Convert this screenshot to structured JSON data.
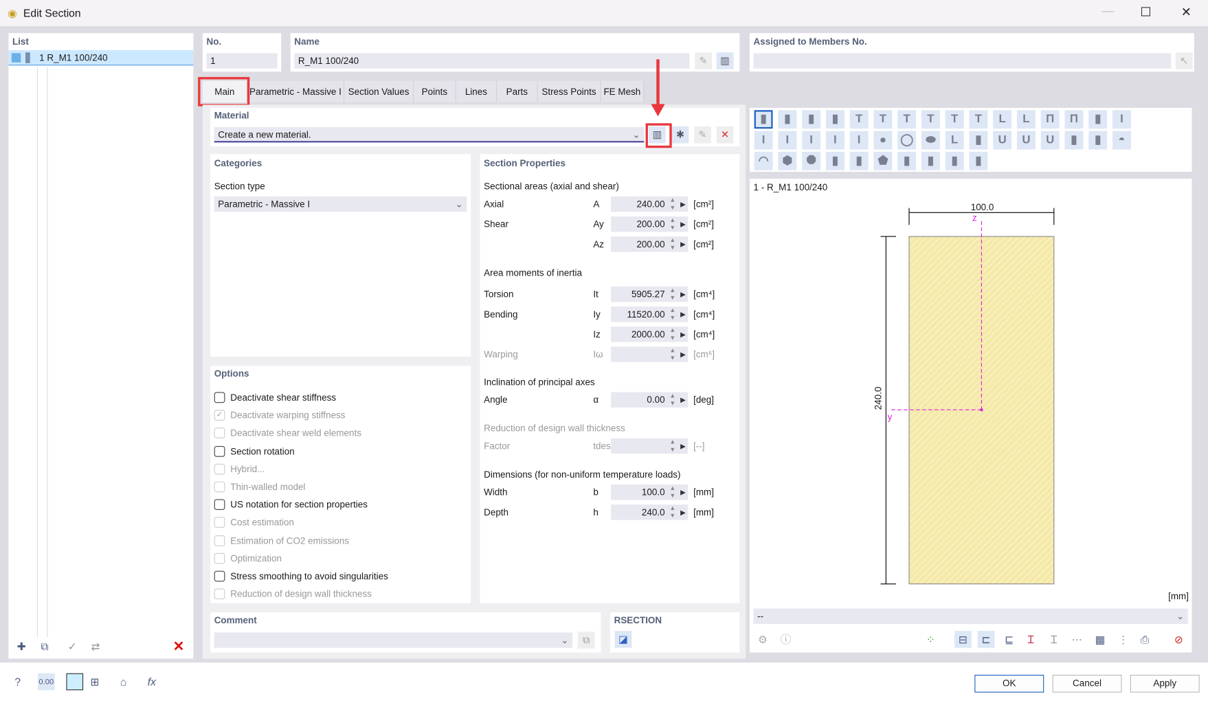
{
  "window": {
    "title": "Edit Section"
  },
  "list": {
    "header": "List",
    "items": [
      {
        "label": "1  R_M1 100/240"
      }
    ]
  },
  "no": {
    "label": "No.",
    "value": "1"
  },
  "name": {
    "label": "Name",
    "value": "R_M1 100/240"
  },
  "assigned": {
    "label": "Assigned to Members No.",
    "value": ""
  },
  "tabs": [
    "Main",
    "Parametric - Massive I",
    "Section Values",
    "Points",
    "Lines",
    "Parts",
    "Stress Points",
    "FE Mesh"
  ],
  "material": {
    "label": "Material",
    "value": "Create a new material."
  },
  "categories": {
    "label": "Categories",
    "section_type_label": "Section type",
    "section_type": "Parametric - Massive I"
  },
  "options": {
    "label": "Options",
    "items": [
      {
        "label": "Deactivate shear stiffness",
        "checked": false,
        "enabled": true
      },
      {
        "label": "Deactivate warping stiffness",
        "checked": true,
        "enabled": false
      },
      {
        "label": "Deactivate shear weld elements",
        "checked": false,
        "enabled": false
      },
      {
        "label": "Section rotation",
        "checked": false,
        "enabled": true
      },
      {
        "label": "Hybrid...",
        "checked": false,
        "enabled": false
      },
      {
        "label": "Thin-walled model",
        "checked": false,
        "enabled": false
      },
      {
        "label": "US notation for section properties",
        "checked": false,
        "enabled": true
      },
      {
        "label": "Cost estimation",
        "checked": false,
        "enabled": false
      },
      {
        "label": "Estimation of CO2 emissions",
        "checked": false,
        "enabled": false
      },
      {
        "label": "Optimization",
        "checked": false,
        "enabled": false
      },
      {
        "label": "Stress smoothing to avoid singularities",
        "checked": false,
        "enabled": true
      },
      {
        "label": "Reduction of design wall thickness",
        "checked": false,
        "enabled": false
      }
    ]
  },
  "props": {
    "label": "Section Properties",
    "areas_label": "Sectional areas (axial and shear)",
    "axial": {
      "label": "Axial",
      "sym": "A",
      "value": "240.00",
      "unit": "[cm²]"
    },
    "shear_y": {
      "label": "Shear",
      "sym": "Ay",
      "value": "200.00",
      "unit": "[cm²]"
    },
    "shear_z": {
      "label": "",
      "sym": "Az",
      "value": "200.00",
      "unit": "[cm²]"
    },
    "inertia_label": "Area moments of inertia",
    "torsion": {
      "label": "Torsion",
      "sym": "It",
      "value": "5905.27",
      "unit": "[cm⁴]"
    },
    "bending_y": {
      "label": "Bending",
      "sym": "Iy",
      "value": "11520.00",
      "unit": "[cm⁴]"
    },
    "bending_z": {
      "label": "",
      "sym": "Iz",
      "value": "2000.00",
      "unit": "[cm⁴]"
    },
    "warping": {
      "label": "Warping",
      "sym": "Iω",
      "value": "",
      "unit": "[cm⁶]"
    },
    "incl_label": "Inclination of principal axes",
    "angle": {
      "label": "Angle",
      "sym": "α",
      "value": "0.00",
      "unit": "[deg]"
    },
    "red_label": "Reduction of design wall thickness",
    "factor": {
      "label": "Factor",
      "sym": "tdes/t",
      "value": "",
      "unit": "[--]"
    },
    "dim_label": "Dimensions (for non-uniform temperature loads)",
    "width": {
      "label": "Width",
      "sym": "b",
      "value": "100.0",
      "unit": "[mm]"
    },
    "depth": {
      "label": "Depth",
      "sym": "h",
      "value": "240.0",
      "unit": "[mm]"
    }
  },
  "comment": {
    "label": "Comment",
    "value": ""
  },
  "rsection": {
    "label": "RSECTION"
  },
  "preview": {
    "title": "1 - R_M1 100/240",
    "dim_width": "100.0",
    "dim_height": "240.0",
    "axis_z": "z",
    "axis_y": "y",
    "units": "[mm]",
    "dropdown": "--",
    "fill": "#f5e9a8"
  },
  "shapes": [
    "rect",
    "rounded-rect",
    "square",
    "rounded-square",
    "trapezoid",
    "t-section",
    "t-section-2",
    "t-narrow",
    "t-inverted",
    "t-inverted-2",
    "l-flange",
    "l-flange-2",
    "pi",
    "pi-2",
    "w",
    "i-section",
    "i-section-2",
    "i-wide",
    "i-narrow",
    "i-taper",
    "i-taper-2",
    "circle",
    "ring",
    "ellipse",
    "l-angle",
    "z-section",
    "u-channel",
    "u-channel-2",
    "u-channel-3",
    "hollow-rect",
    "hollow-rounded",
    "semicircle",
    "segment",
    "hexagon",
    "octagon",
    "wedge",
    "notched",
    "pentagon",
    "arrow",
    "bottle",
    "bottle-2",
    "half-wedge"
  ],
  "footer": {
    "ok": "OK",
    "cancel": "Cancel",
    "apply": "Apply"
  },
  "colors": {
    "accent": "#e8383d",
    "selected": "#cce8ff"
  }
}
